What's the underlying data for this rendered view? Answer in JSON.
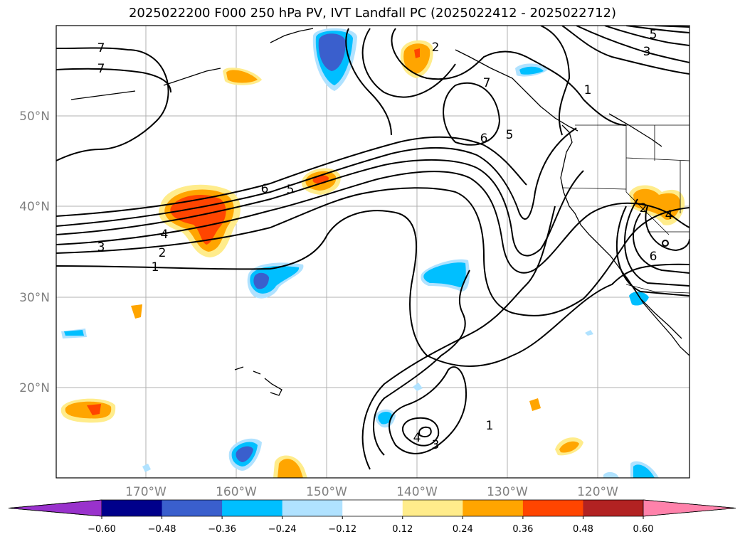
{
  "title": "2025022200 F000 250 hPa PV, IVT Landfall PC (2025022412 - 2025022712)",
  "lat_labels": [
    "50°N",
    "40°N",
    "30°N",
    "20°N"
  ],
  "lon_labels": [
    "170°W",
    "160°W",
    "150°W",
    "140°W",
    "130°W",
    "120°W"
  ],
  "colorbar": {
    "ticks": [
      "−0.60",
      "−0.48",
      "−0.36",
      "−0.24",
      "−0.12",
      "0.12",
      "0.24",
      "0.36",
      "0.48",
      "0.60"
    ],
    "colors": {
      "under": "#9932cc",
      "bins": [
        "#00008b",
        "#3a5fcd",
        "#00bfff",
        "#b0e2ff",
        "#ffffff",
        "#ffec8b",
        "#ffa500",
        "#ff4500",
        "#b22222"
      ],
      "over": "#ff82ab"
    }
  },
  "contour_labels": [
    "1",
    "2",
    "3",
    "4",
    "5",
    "6",
    "7",
    "1",
    "2",
    "3",
    "4",
    "5",
    "6",
    "7",
    "4",
    "3",
    "1",
    "2",
    "4",
    "5",
    "6",
    "7",
    "2",
    "3",
    "5",
    "6",
    "1"
  ]
}
